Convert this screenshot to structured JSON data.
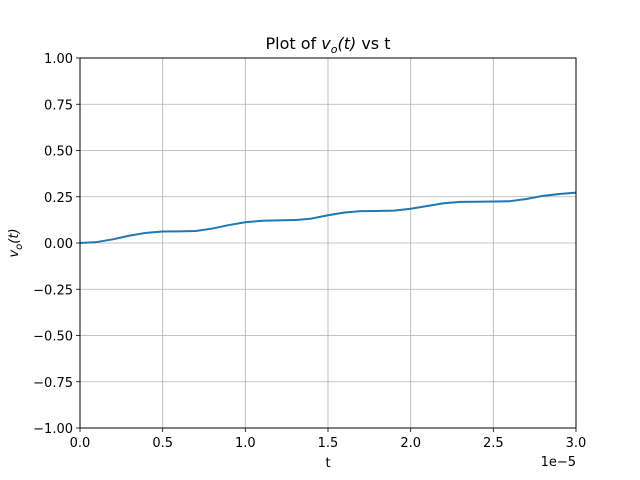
{
  "chart_data": {
    "type": "line",
    "title_prefix": "Plot of ",
    "title_symbol": "v",
    "title_subscript": "o",
    "title_arg": "(t)",
    "title_suffix": " vs t",
    "xlabel": "t",
    "ylabel_symbol": "v",
    "ylabel_subscript": "o",
    "ylabel_arg": "(t)",
    "x_offset_label": "1e−5",
    "xlim": [
      0.0,
      3.0
    ],
    "ylim": [
      -1.0,
      1.0
    ],
    "x_ticks": [
      0.0,
      0.5,
      1.0,
      1.5,
      2.0,
      2.5,
      3.0
    ],
    "x_tick_labels": [
      "0.0",
      "0.5",
      "1.0",
      "1.5",
      "2.0",
      "2.5",
      "3.0"
    ],
    "y_ticks": [
      1.0,
      0.75,
      0.5,
      0.25,
      0.0,
      -0.25,
      -0.5,
      -0.75,
      -1.0
    ],
    "y_tick_labels": [
      "1.00",
      "0.75",
      "0.50",
      "0.25",
      "0.00",
      "−0.25",
      "−0.50",
      "−0.75",
      "−1.00"
    ],
    "grid": true,
    "series": [
      {
        "color": "#1f77b4",
        "x": [
          0.0,
          0.1,
          0.2,
          0.3,
          0.4,
          0.5,
          0.6,
          0.7,
          0.8,
          0.9,
          1.0,
          1.1,
          1.2,
          1.3,
          1.4,
          1.5,
          1.6,
          1.7,
          1.8,
          1.9,
          2.0,
          2.1,
          2.2,
          2.3,
          2.4,
          2.5,
          2.6,
          2.7,
          2.8,
          2.9,
          3.0
        ],
        "y": [
          0.0,
          0.005,
          0.02,
          0.04,
          0.055,
          0.062,
          0.063,
          0.065,
          0.078,
          0.097,
          0.112,
          0.12,
          0.122,
          0.124,
          0.132,
          0.15,
          0.165,
          0.172,
          0.173,
          0.175,
          0.185,
          0.2,
          0.215,
          0.222,
          0.223,
          0.224,
          0.226,
          0.238,
          0.255,
          0.265,
          0.272
        ]
      }
    ]
  }
}
